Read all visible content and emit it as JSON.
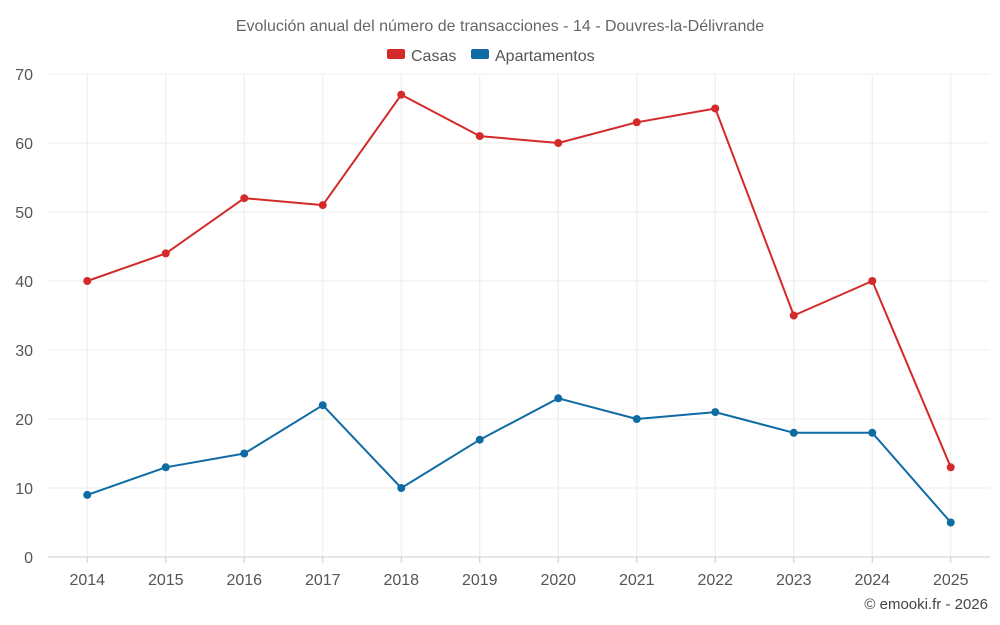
{
  "chart_data": {
    "type": "line",
    "title": "Evolución anual del número de transacciones - 14 - Douvres-la-Délivrande",
    "categories": [
      "2014",
      "2015",
      "2016",
      "2017",
      "2018",
      "2019",
      "2020",
      "2021",
      "2022",
      "2023",
      "2024",
      "2025"
    ],
    "series": [
      {
        "name": "Casas",
        "color": "#d42a2a",
        "values": [
          40,
          44,
          52,
          51,
          67,
          61,
          60,
          63,
          65,
          35,
          40,
          13
        ]
      },
      {
        "name": "Apartamentos",
        "color": "#0f6ba3",
        "values": [
          9,
          13,
          15,
          22,
          10,
          17,
          23,
          20,
          21,
          18,
          18,
          5
        ]
      }
    ],
    "yticks": [
      0,
      10,
      20,
      30,
      40,
      50,
      60,
      70
    ],
    "ylim": [
      0,
      70
    ],
    "grid": true,
    "legend": "top-center",
    "xlabel": "",
    "ylabel": ""
  },
  "credit": "© emooki.fr - 2026"
}
